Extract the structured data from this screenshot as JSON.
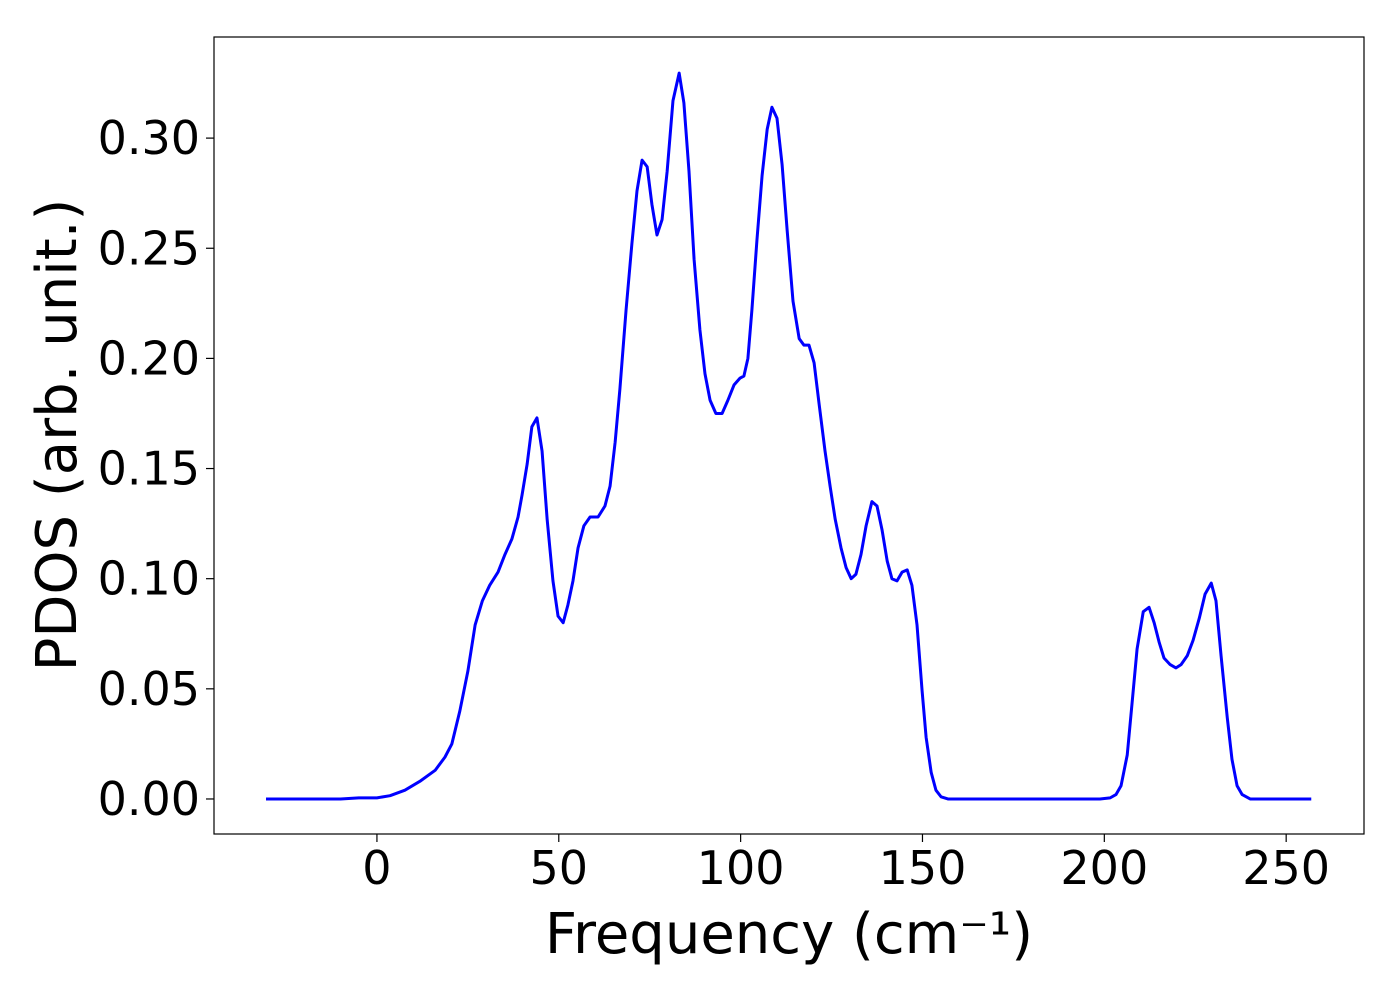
{
  "chart_data": {
    "type": "line",
    "xlabel": "Frequency (cm⁻¹)",
    "ylabel": "PDOS (arb. unit.)",
    "color": "#0000ff",
    "xlim": [
      -44.8,
      271.4
    ],
    "ylim": [
      -0.0159,
      0.3459
    ],
    "xticks": [
      0,
      50,
      100,
      150,
      200,
      250
    ],
    "yticks": [
      {
        "value": 0,
        "label": "0.00"
      },
      0.05,
      {
        "value": 0.1,
        "label": "0.10"
      },
      0.15,
      {
        "value": 0.2,
        "label": "0.20"
      },
      0.25,
      {
        "value": 0.3,
        "label": "0.30"
      }
    ],
    "x": [
      -30.5,
      -10,
      -5,
      0,
      3.6,
      7.7,
      11.8,
      16,
      18.7,
      20.6,
      22.8,
      25,
      27,
      29,
      31,
      33.3,
      35.2,
      37.1,
      38.8,
      39.9,
      41.3,
      42.6,
      44,
      45.4,
      46.8,
      48.4,
      49.8,
      51.2,
      52.5,
      53.9,
      55.3,
      56.9,
      58.6,
      60.8,
      62.7,
      64.1,
      65.5,
      66.8,
      68.5,
      70.1,
      71.5,
      72.9,
      74.3,
      75.6,
      77,
      78.4,
      79.8,
      81.4,
      83.1,
      84.4,
      85.8,
      87.2,
      88.8,
      90.2,
      91.6,
      93.2,
      94.9,
      96.5,
      98.2,
      99.8,
      100.9,
      102,
      103.1,
      104.5,
      105.9,
      107.3,
      108.6,
      110,
      111.4,
      112.8,
      114.4,
      116.1,
      117.4,
      118.8,
      120.2,
      121.6,
      123.2,
      124.6,
      126,
      127.6,
      129,
      130.4,
      131.7,
      133.1,
      134.5,
      136.1,
      137.5,
      138.9,
      140.3,
      141.6,
      143,
      144.4,
      145.8,
      147.1,
      148.5,
      149.9,
      151,
      152.4,
      153.7,
      155.1,
      157,
      171.3,
      198.8,
      201.6,
      203.2,
      204.6,
      206.3,
      207.6,
      209,
      210.7,
      212.3,
      213.7,
      215.1,
      216.4,
      218.1,
      219.7,
      221.1,
      222.8,
      224.4,
      226.1,
      227.7,
      229.4,
      230.7,
      232.1,
      233.8,
      235.1,
      236.5,
      237.9,
      240.1,
      256.9
    ],
    "values": [
      0,
      0,
      0.0005,
      0.0005,
      0.0015,
      0.004,
      0.008,
      0.013,
      0.019,
      0.025,
      0.04,
      0.058,
      0.079,
      0.09,
      0.097,
      0.103,
      0.111,
      0.118,
      0.128,
      0.138,
      0.152,
      0.169,
      0.173,
      0.158,
      0.127,
      0.099,
      0.083,
      0.08,
      0.088,
      0.099,
      0.114,
      0.124,
      0.128,
      0.128,
      0.133,
      0.142,
      0.162,
      0.186,
      0.222,
      0.252,
      0.276,
      0.29,
      0.287,
      0.27,
      0.256,
      0.263,
      0.285,
      0.317,
      0.3295,
      0.316,
      0.285,
      0.245,
      0.213,
      0.193,
      0.181,
      0.175,
      0.175,
      0.181,
      0.188,
      0.191,
      0.192,
      0.2,
      0.222,
      0.254,
      0.283,
      0.304,
      0.314,
      0.309,
      0.288,
      0.258,
      0.226,
      0.209,
      0.206,
      0.206,
      0.198,
      0.179,
      0.158,
      0.142,
      0.127,
      0.114,
      0.105,
      0.1,
      0.102,
      0.111,
      0.124,
      0.135,
      0.133,
      0.122,
      0.108,
      0.1,
      0.099,
      0.103,
      0.104,
      0.097,
      0.079,
      0.049,
      0.028,
      0.012,
      0.004,
      0.001,
      0,
      0,
      0,
      0.0005,
      0.002,
      0.006,
      0.02,
      0.043,
      0.068,
      0.085,
      0.087,
      0.08,
      0.071,
      0.064,
      0.061,
      0.0595,
      0.061,
      0.065,
      0.072,
      0.082,
      0.093,
      0.098,
      0.09,
      0.065,
      0.037,
      0.018,
      0.006,
      0.002,
      0,
      0
    ]
  }
}
